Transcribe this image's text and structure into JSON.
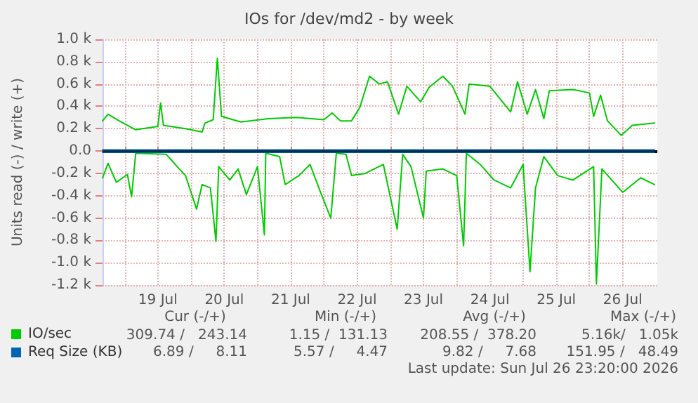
{
  "chart_data": {
    "type": "line",
    "title": "IOs for /dev/md2 - by week",
    "ylabel": "Units read (-) / write (+)",
    "xlim": [
      "2026-07-18T16:00",
      "2026-07-27T00:30"
    ],
    "xticks": [
      {
        "value": "2026-07-19T00:00",
        "label": null
      },
      {
        "value": "2026-07-19T12:00",
        "label": "19 Jul"
      },
      {
        "value": "2026-07-20T00:00",
        "label": null
      },
      {
        "value": "2026-07-20T12:00",
        "label": "20 Jul"
      },
      {
        "value": "2026-07-21T00:00",
        "label": null
      },
      {
        "value": "2026-07-21T12:00",
        "label": "21 Jul"
      },
      {
        "value": "2026-07-22T00:00",
        "label": null
      },
      {
        "value": "2026-07-22T12:00",
        "label": "22 Jul"
      },
      {
        "value": "2026-07-23T00:00",
        "label": null
      },
      {
        "value": "2026-07-23T12:00",
        "label": "23 Jul"
      },
      {
        "value": "2026-07-24T00:00",
        "label": null
      },
      {
        "value": "2026-07-24T12:00",
        "label": "24 Jul"
      },
      {
        "value": "2026-07-25T00:00",
        "label": null
      },
      {
        "value": "2026-07-25T12:00",
        "label": "25 Jul"
      },
      {
        "value": "2026-07-26T00:00",
        "label": null
      },
      {
        "value": "2026-07-26T12:00",
        "label": "26 Jul"
      }
    ],
    "ylim": [
      -1200,
      1000
    ],
    "yticks": [
      {
        "value": -1200,
        "label": "-1.2 k"
      },
      {
        "value": -1000,
        "label": "-1.0 k"
      },
      {
        "value": -800,
        "label": "-0.8 k"
      },
      {
        "value": -600,
        "label": "-0.6 k"
      },
      {
        "value": -400,
        "label": "-0.4 k"
      },
      {
        "value": -200,
        "label": "-0.2 k"
      },
      {
        "value": 0,
        "label": "0.0"
      },
      {
        "value": 200,
        "label": "0.2 k"
      },
      {
        "value": 400,
        "label": "0.4 k"
      },
      {
        "value": 600,
        "label": "0.6 k"
      },
      {
        "value": 800,
        "label": "0.8 k"
      },
      {
        "value": 1000,
        "label": "1.0 k"
      }
    ],
    "grid": true,
    "legend": "bottom left",
    "marker": "none",
    "line_style": "solid",
    "ref_lines": [
      {
        "axis": "y",
        "value": 0,
        "color": "#000000"
      }
    ],
    "series": [
      {
        "name": "IO/sec",
        "color": "#00cc00",
        "x": [
          "2026-07-18T16:00",
          "2026-07-18T18:00",
          "2026-07-18T22:00",
          "2026-07-19T04:00",
          "2026-07-19T12:00",
          "2026-07-19T13:00",
          "2026-07-19T14:00",
          "2026-07-19T22:00",
          "2026-07-20T04:00",
          "2026-07-20T05:00",
          "2026-07-20T08:00",
          "2026-07-20T09:30",
          "2026-07-20T11:00",
          "2026-07-20T18:00",
          "2026-07-21T04:00",
          "2026-07-21T14:00",
          "2026-07-22T00:00",
          "2026-07-22T03:00",
          "2026-07-22T06:00",
          "2026-07-22T10:00",
          "2026-07-22T13:00",
          "2026-07-22T16:30",
          "2026-07-22T20:00",
          "2026-07-22T23:00",
          "2026-07-23T03:00",
          "2026-07-23T06:00",
          "2026-07-23T11:00",
          "2026-07-23T14:00",
          "2026-07-23T19:00",
          "2026-07-23T22:30",
          "2026-07-24T03:00",
          "2026-07-24T04:30",
          "2026-07-24T12:00",
          "2026-07-24T19:30",
          "2026-07-24T22:00",
          "2026-07-25T01:30",
          "2026-07-25T04:30",
          "2026-07-25T07:30",
          "2026-07-25T09:30",
          "2026-07-25T18:00",
          "2026-07-26T00:00",
          "2026-07-26T01:30",
          "2026-07-26T04:00",
          "2026-07-26T06:30",
          "2026-07-26T11:30",
          "2026-07-26T15:30",
          "2026-07-26T23:30"
        ],
        "values": [
          270,
          330,
          270,
          190,
          220,
          430,
          230,
          200,
          170,
          250,
          280,
          830,
          310,
          260,
          290,
          300,
          280,
          340,
          270,
          270,
          390,
          670,
          600,
          620,
          330,
          580,
          440,
          570,
          670,
          580,
          330,
          600,
          580,
          350,
          620,
          330,
          550,
          290,
          540,
          550,
          520,
          310,
          500,
          270,
          140,
          230,
          250
        ]
      },
      {
        "color": "#00cc00",
        "x": [
          "2026-07-18T16:00",
          "2026-07-18T18:00",
          "2026-07-18T21:00",
          "2026-07-19T01:00",
          "2026-07-19T02:30",
          "2026-07-19T04:00",
          "2026-07-19T15:00",
          "2026-07-19T16:30",
          "2026-07-19T19:00",
          "2026-07-19T22:00",
          "2026-07-20T02:00",
          "2026-07-20T04:00",
          "2026-07-20T07:00",
          "2026-07-20T09:00",
          "2026-07-20T10:00",
          "2026-07-20T14:00",
          "2026-07-20T17:00",
          "2026-07-20T20:00",
          "2026-07-21T00:00",
          "2026-07-21T02:30",
          "2026-07-21T03:00",
          "2026-07-21T08:00",
          "2026-07-21T10:00",
          "2026-07-21T15:00",
          "2026-07-21T19:00",
          "2026-07-21T22:30",
          "2026-07-22T02:30",
          "2026-07-22T04:30",
          "2026-07-22T08:00",
          "2026-07-22T10:00",
          "2026-07-22T15:00",
          "2026-07-22T21:30",
          "2026-07-23T02:30",
          "2026-07-23T04:30",
          "2026-07-23T07:30",
          "2026-07-23T12:00",
          "2026-07-23T13:00",
          "2026-07-23T19:00",
          "2026-07-24T00:00",
          "2026-07-24T02:30",
          "2026-07-24T03:30",
          "2026-07-24T08:30",
          "2026-07-24T13:30",
          "2026-07-24T19:30",
          "2026-07-25T00:00",
          "2026-07-25T02:30",
          "2026-07-25T04:30",
          "2026-07-25T07:30",
          "2026-07-25T12:30",
          "2026-07-25T18:00",
          "2026-07-26T01:30",
          "2026-07-26T02:30",
          "2026-07-26T04:30",
          "2026-07-26T12:00",
          "2026-07-26T18:30",
          "2026-07-26T23:30"
        ],
        "values": [
          -240,
          -110,
          -280,
          -210,
          -410,
          -20,
          -30,
          -70,
          -140,
          -220,
          -520,
          -300,
          -330,
          -810,
          -140,
          -260,
          -160,
          -390,
          -140,
          -750,
          -20,
          -50,
          -300,
          -220,
          -120,
          -350,
          -600,
          -20,
          -30,
          -220,
          -200,
          -120,
          -700,
          -30,
          -140,
          -600,
          -180,
          -160,
          -220,
          -850,
          -20,
          -120,
          -260,
          -330,
          -120,
          -1080,
          -330,
          -50,
          -220,
          -260,
          -140,
          -1190,
          -160,
          -370,
          -240,
          -300
        ]
      },
      {
        "name": "Req Size (KB)",
        "color": "#0066b3",
        "x": [
          "2026-07-18T16:00",
          "2026-07-22T12:00",
          "2026-07-26T23:30"
        ],
        "values": [
          10,
          10,
          10
        ]
      },
      {
        "color": "#0066b3",
        "x": [
          "2026-07-18T16:00",
          "2026-07-22T12:00",
          "2026-07-26T23:30"
        ],
        "values": [
          -10,
          -10,
          -10
        ]
      }
    ],
    "annotations": [
      "Cur (-/+)",
      "Min (-/+)",
      "Avg (-/+)",
      "Max (-/+)",
      "309.74 /   243.14",
      "1.15 /  131.13",
      "208.55 /  378.20",
      "5.16k/   1.05k",
      "6.89 /     8.11",
      "5.57 /     4.47",
      "9.82 /     7.68",
      "151.95 /   48.49",
      "Last update: Sun Jul 26 23:20:00 2026"
    ]
  }
}
